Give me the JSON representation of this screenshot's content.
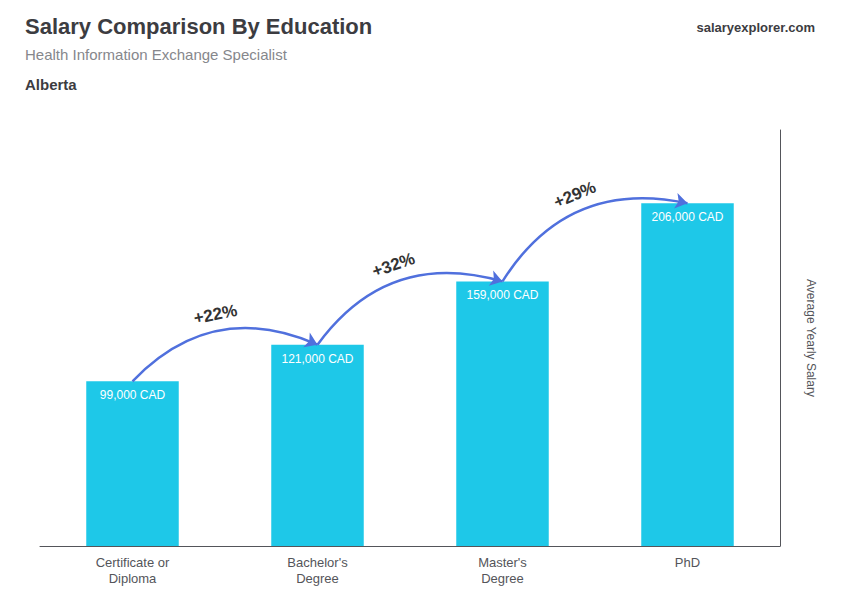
{
  "chart_data": {
    "type": "bar",
    "title": "Salary Comparison By Education",
    "subtitle": "Health Information Exchange Specialist",
    "annotations": [
      "Alberta",
      "salaryexplorer.com"
    ],
    "ylabel": "Average Yearly Salary",
    "categories": [
      "Certificate or\nDiploma",
      "Bachelor's\nDegree",
      "Master's\nDegree",
      "PhD"
    ],
    "values": [
      99000,
      121000,
      159000,
      206000
    ],
    "value_labels": [
      "99,000 CAD",
      "121,000 CAD",
      "159,000 CAD",
      "206,000 CAD"
    ],
    "data_labels": true,
    "change_labels": [
      "+22%",
      "+32%",
      "+29%"
    ],
    "color": "#1EC8E8",
    "ylim": [
      0,
      250000
    ],
    "tick_labels": "x",
    "grid": false
  }
}
